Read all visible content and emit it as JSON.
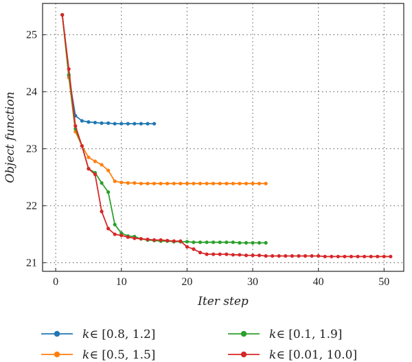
{
  "chart_data": {
    "type": "line",
    "xlabel": "Iter step",
    "ylabel": "Object function",
    "xlim": [
      -2,
      53
    ],
    "ylim": [
      20.85,
      25.55
    ],
    "xticks": [
      0,
      10,
      20,
      30,
      40,
      50
    ],
    "yticks": [
      21,
      22,
      23,
      24,
      25
    ],
    "grid": true,
    "legend_position": "bottom",
    "series": [
      {
        "name": "k∈ [0.8, 1.2]",
        "label_k": "k",
        "label_rest": "∈ [0.8, 1.2]",
        "color": "#1f77b4",
        "x": [
          1,
          2,
          3,
          4,
          5,
          6,
          7,
          8,
          9,
          10,
          11,
          12,
          13,
          14,
          15
        ],
        "y": [
          25.35,
          24.28,
          23.58,
          23.49,
          23.47,
          23.46,
          23.45,
          23.45,
          23.44,
          23.44,
          23.44,
          23.44,
          23.44,
          23.44,
          23.44
        ]
      },
      {
        "name": "k∈ [0.5, 1.5]",
        "label_k": "k",
        "label_rest": "∈ [0.5, 1.5]",
        "color": "#ff7f0e",
        "x": [
          1,
          2,
          3,
          4,
          5,
          6,
          7,
          8,
          9,
          10,
          11,
          12,
          13,
          14,
          15,
          16,
          17,
          18,
          19,
          20,
          21,
          22,
          23,
          24,
          25,
          26,
          27,
          28,
          29,
          30,
          31,
          32
        ],
        "y": [
          25.35,
          24.25,
          23.3,
          23.05,
          22.85,
          22.78,
          22.72,
          22.62,
          22.43,
          22.41,
          22.4,
          22.4,
          22.39,
          22.39,
          22.39,
          22.39,
          22.39,
          22.39,
          22.39,
          22.39,
          22.39,
          22.39,
          22.39,
          22.39,
          22.39,
          22.39,
          22.39,
          22.39,
          22.39,
          22.39,
          22.39,
          22.39
        ]
      },
      {
        "name": "k∈ [0.1, 1.9]",
        "label_k": "k",
        "label_rest": "∈ [0.1, 1.9]",
        "color": "#2ca02c",
        "x": [
          1,
          2,
          3,
          4,
          5,
          6,
          7,
          8,
          9,
          10,
          11,
          12,
          13,
          14,
          15,
          16,
          17,
          18,
          19,
          20,
          21,
          22,
          23,
          24,
          25,
          26,
          27,
          28,
          29,
          30,
          31,
          32
        ],
        "y": [
          25.35,
          24.3,
          23.35,
          23.05,
          22.65,
          22.58,
          22.4,
          22.24,
          21.67,
          21.52,
          21.47,
          21.46,
          21.42,
          21.4,
          21.39,
          21.38,
          21.38,
          21.37,
          21.37,
          21.37,
          21.36,
          21.36,
          21.36,
          21.36,
          21.36,
          21.36,
          21.36,
          21.35,
          21.35,
          21.35,
          21.35,
          21.35
        ]
      },
      {
        "name": "k∈ [0.01, 10.0]",
        "label_k": "k",
        "label_rest": "∈ [0.01, 10.0]",
        "color": "#d62728",
        "x": [
          1,
          2,
          3,
          4,
          5,
          6,
          7,
          8,
          9,
          10,
          11,
          12,
          13,
          14,
          15,
          16,
          17,
          18,
          19,
          20,
          21,
          22,
          23,
          24,
          25,
          26,
          27,
          28,
          29,
          30,
          31,
          32,
          33,
          34,
          35,
          36,
          37,
          38,
          39,
          40,
          41,
          42,
          43,
          44,
          45,
          46,
          47,
          48,
          49,
          50,
          51
        ],
        "y": [
          25.35,
          24.4,
          23.4,
          23.05,
          22.65,
          22.55,
          21.9,
          21.6,
          21.5,
          21.48,
          21.45,
          21.43,
          21.42,
          21.41,
          21.4,
          21.4,
          21.39,
          21.38,
          21.38,
          21.28,
          21.24,
          21.18,
          21.15,
          21.15,
          21.15,
          21.15,
          21.14,
          21.14,
          21.13,
          21.13,
          21.13,
          21.12,
          21.12,
          21.12,
          21.12,
          21.12,
          21.12,
          21.12,
          21.12,
          21.12,
          21.11,
          21.11,
          21.11,
          21.11,
          21.11,
          21.11,
          21.11,
          21.11,
          21.11,
          21.11,
          21.11
        ]
      }
    ]
  }
}
